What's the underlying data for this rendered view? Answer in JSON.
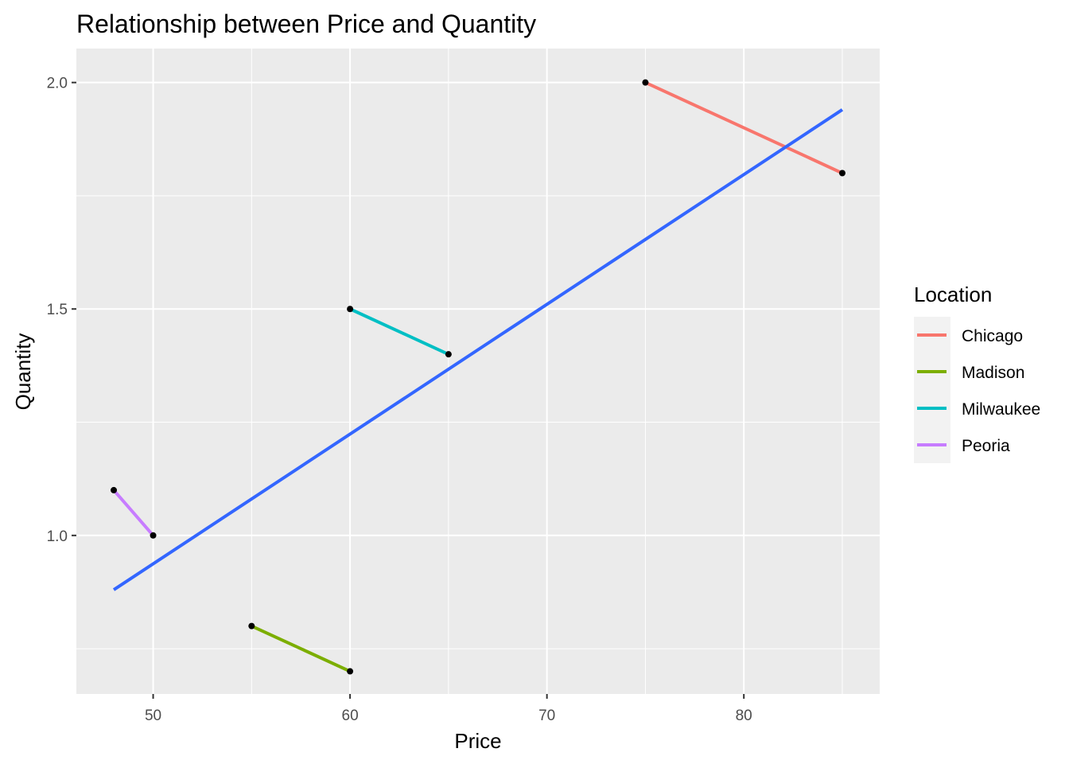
{
  "chart_data": {
    "type": "line",
    "title": "Relationship between Price and Quantity",
    "xlabel": "Price",
    "ylabel": "Quantity",
    "xlim": [
      46.1,
      86.9
    ],
    "ylim": [
      0.65,
      2.075
    ],
    "x_ticks": [
      50,
      60,
      70,
      80
    ],
    "x_tick_labels": [
      "50",
      "60",
      "70",
      "80"
    ],
    "x_minor_ticks": [
      55,
      65,
      75,
      85
    ],
    "y_ticks": [
      1.0,
      1.5,
      2.0
    ],
    "y_tick_labels": [
      "1.0",
      "1.5",
      "2.0"
    ],
    "y_minor_ticks": [
      0.75,
      1.25,
      1.75
    ],
    "grid": true,
    "panel_background": "#ebebeb",
    "legend": {
      "title": "Location",
      "placement": "right"
    },
    "series": [
      {
        "name": "Chicago",
        "color": "#f8766d",
        "points": [
          [
            75,
            2.0
          ],
          [
            85,
            1.8
          ]
        ]
      },
      {
        "name": "Madison",
        "color": "#7cae00",
        "points": [
          [
            55,
            0.8
          ],
          [
            60,
            0.7
          ]
        ]
      },
      {
        "name": "Milwaukee",
        "color": "#00bfc4",
        "points": [
          [
            60,
            1.5
          ],
          [
            65,
            1.4
          ]
        ]
      },
      {
        "name": "Peoria",
        "color": "#c77cff",
        "points": [
          [
            48,
            1.1
          ],
          [
            50,
            1.0
          ]
        ]
      }
    ],
    "trend_line": {
      "color": "#3366ff",
      "points": [
        [
          48,
          0.88
        ],
        [
          85,
          1.94
        ]
      ]
    },
    "point_color": "#000000"
  }
}
